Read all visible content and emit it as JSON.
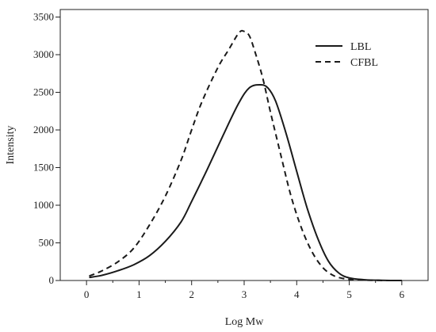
{
  "chart_data": {
    "type": "line",
    "title": "",
    "xlabel": "Log Mw",
    "ylabel": "Intensity",
    "xlim": [
      -0.5,
      6.5
    ],
    "ylim": [
      0,
      3600
    ],
    "xticks": [
      "0",
      "1",
      "2",
      "3",
      "4",
      "5",
      "6"
    ],
    "yticks": [
      "0",
      "500",
      "1000",
      "1500",
      "2000",
      "2500",
      "3000",
      "3500"
    ],
    "grid": false,
    "legend_position": "top-right",
    "series": [
      {
        "name": "LBL",
        "style": "solid",
        "color": "#1a1a1a",
        "x": [
          0.05,
          0.3,
          0.6,
          0.9,
          1.2,
          1.5,
          1.8,
          2.0,
          2.3,
          2.6,
          2.9,
          3.1,
          3.3,
          3.45,
          3.6,
          3.8,
          4.0,
          4.2,
          4.4,
          4.6,
          4.8,
          5.0,
          5.3,
          5.6,
          6.0
        ],
        "y": [
          40,
          70,
          130,
          210,
          330,
          520,
          780,
          1050,
          1480,
          1930,
          2360,
          2560,
          2600,
          2560,
          2380,
          1950,
          1450,
          960,
          560,
          260,
          100,
          35,
          10,
          3,
          0
        ]
      },
      {
        "name": "CFBL",
        "style": "dashed",
        "color": "#1a1a1a",
        "x": [
          0.05,
          0.3,
          0.6,
          0.9,
          1.2,
          1.5,
          1.8,
          2.0,
          2.2,
          2.5,
          2.7,
          2.9,
          3.0,
          3.1,
          3.2,
          3.35,
          3.5,
          3.7,
          3.9,
          4.1,
          4.3,
          4.5,
          4.7,
          4.9,
          5.1,
          5.4,
          5.8,
          6.0
        ],
        "y": [
          60,
          130,
          250,
          430,
          740,
          1120,
          1600,
          2000,
          2380,
          2830,
          3060,
          3290,
          3310,
          3250,
          3050,
          2700,
          2240,
          1660,
          1100,
          680,
          370,
          170,
          65,
          25,
          10,
          3,
          0,
          0
        ]
      }
    ]
  }
}
